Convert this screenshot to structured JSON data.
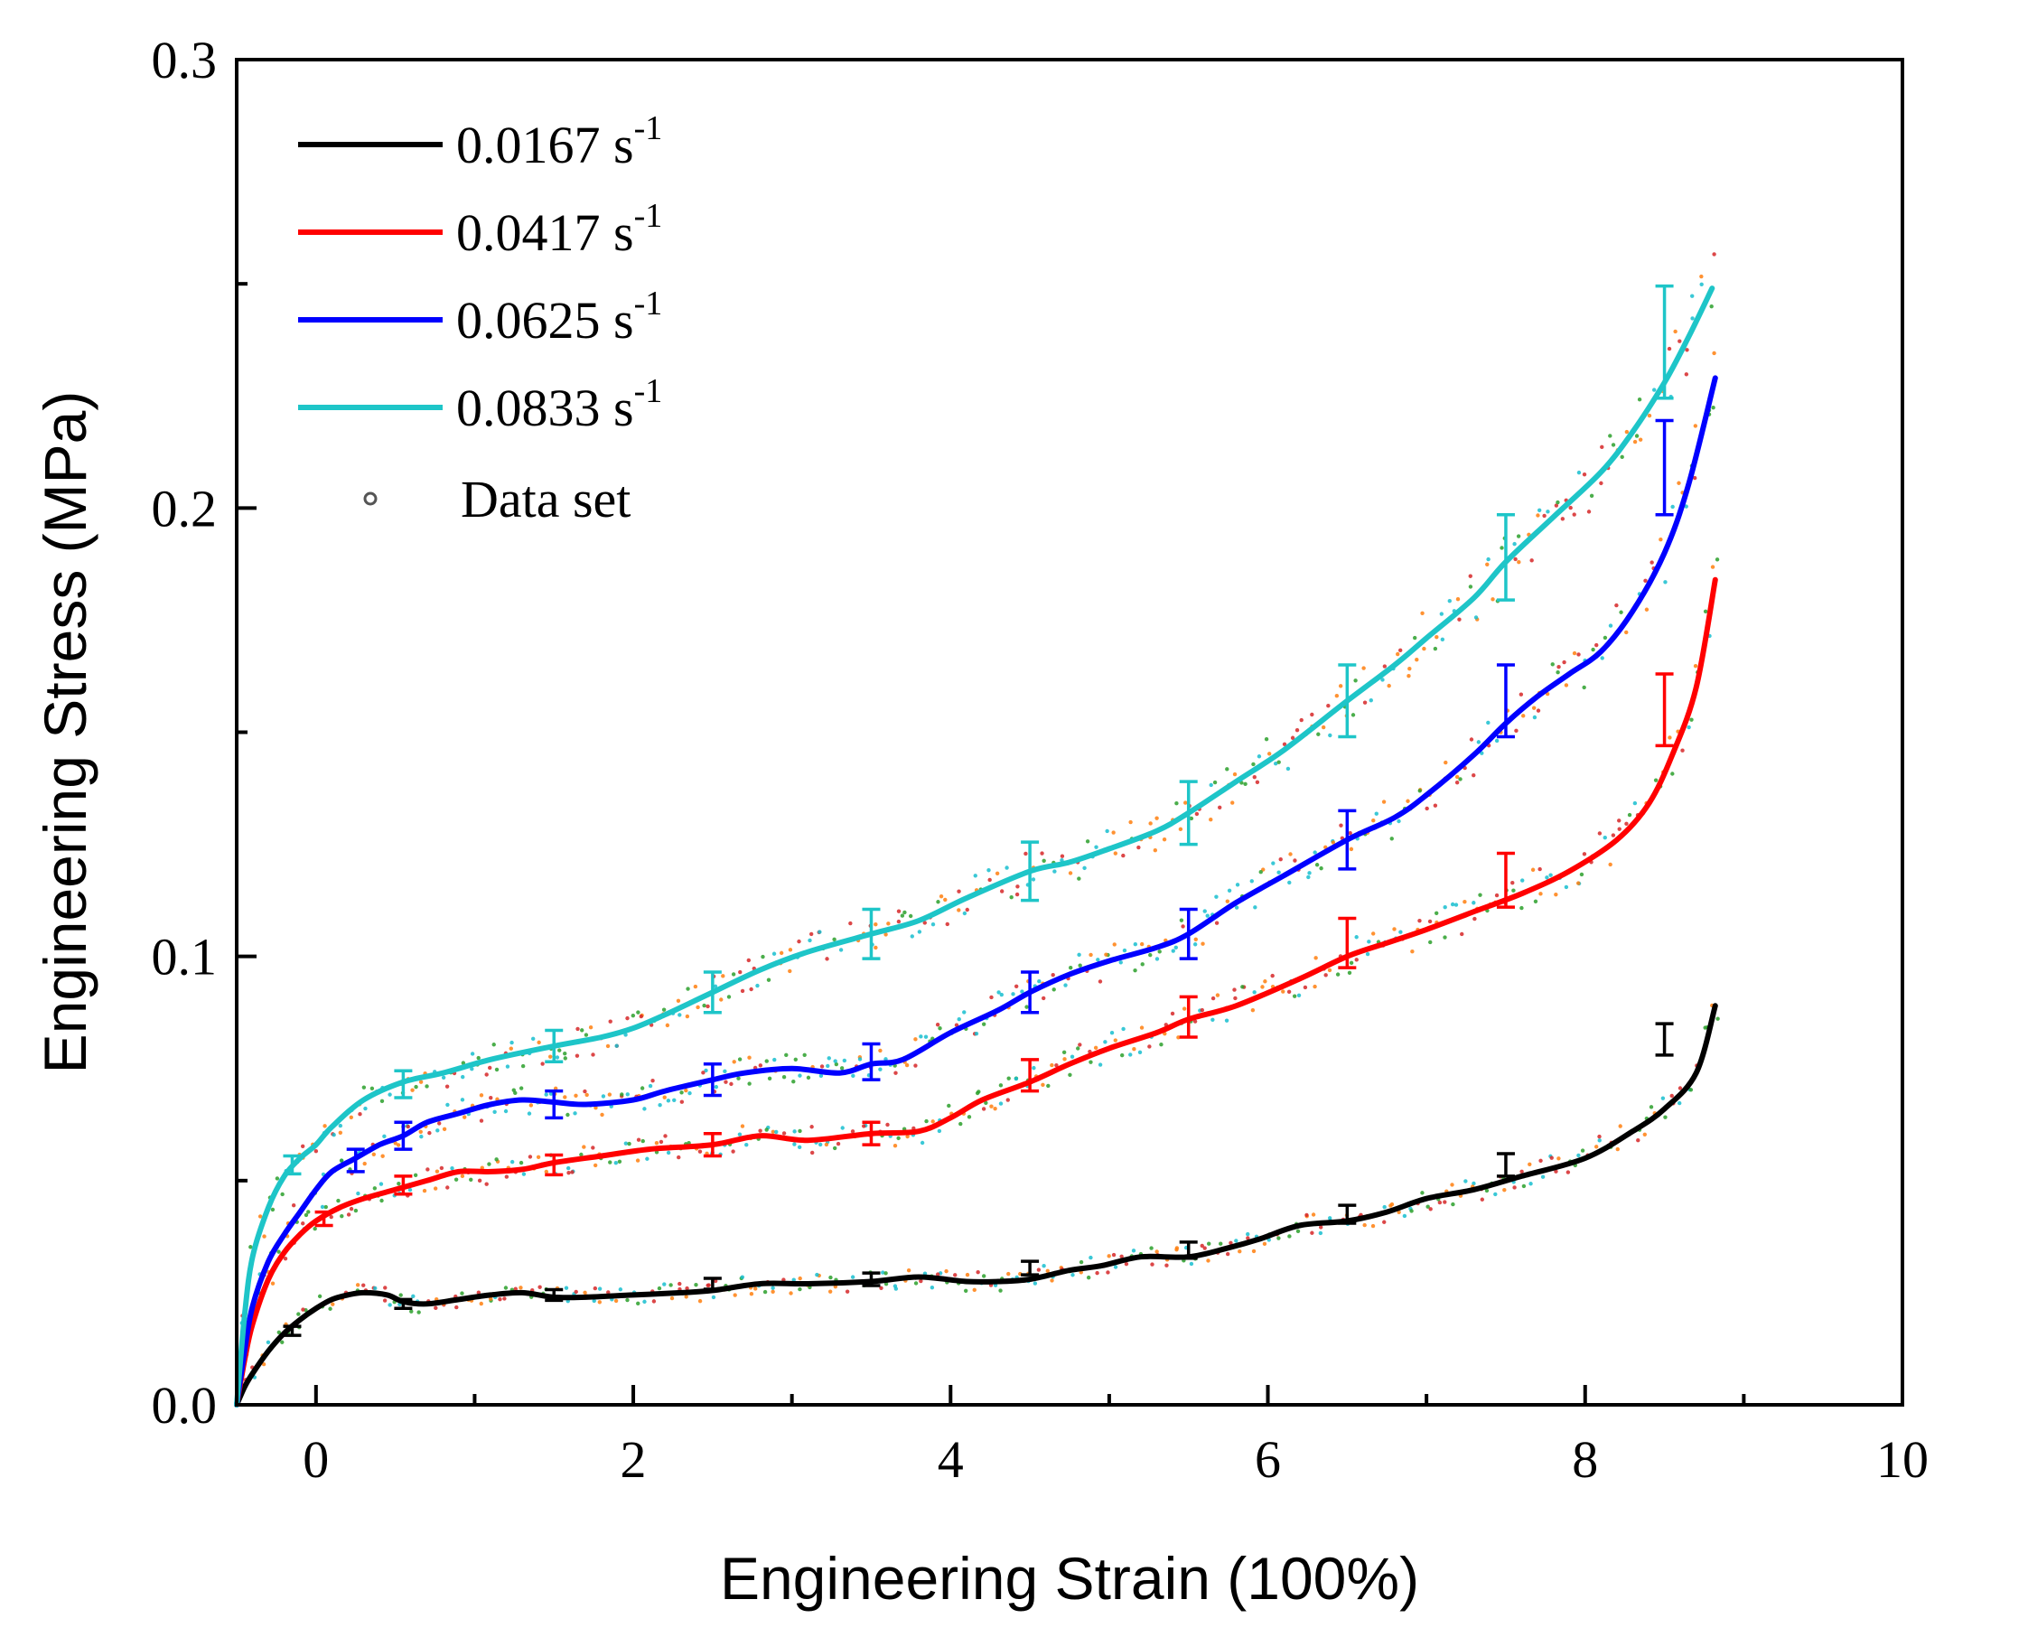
{
  "chart_data": {
    "type": "line",
    "title": "",
    "xlabel": "Engineering Strain (100%)",
    "ylabel": "Engineering Stress (MPa)",
    "xlim": [
      -0.5,
      10.0
    ],
    "ylim": [
      0.0,
      0.3
    ],
    "x_ticks": [
      0,
      2,
      4,
      6,
      8,
      10
    ],
    "x_tick_labels": [
      "0",
      "2",
      "4",
      "6",
      "8",
      "10"
    ],
    "y_ticks": [
      0.0,
      0.1,
      0.2,
      0.3
    ],
    "y_tick_labels": [
      "0.0",
      "0.1",
      "0.2",
      "0.3"
    ],
    "grid": false,
    "legend_position": "top-left",
    "legend_datapoints_label": "Data set",
    "series": [
      {
        "name": "0.0167 s",
        "unit_exp": "-1",
        "color": "#000000",
        "x": [
          -0.5,
          -0.45,
          -0.4,
          -0.3,
          -0.2,
          -0.1,
          0.0,
          0.1,
          0.2,
          0.3,
          0.45,
          0.55,
          0.7,
          0.9,
          1.1,
          1.3,
          1.5,
          1.7,
          2.0,
          2.3,
          2.5,
          2.8,
          3.1,
          3.5,
          3.8,
          4.1,
          4.3,
          4.5,
          4.75,
          4.95,
          5.2,
          5.5,
          5.75,
          5.95,
          6.2,
          6.5,
          6.75,
          7.0,
          7.3,
          7.6,
          8.0,
          8.3,
          8.5,
          8.7,
          8.82
        ],
        "y": [
          0.0,
          0.004,
          0.007,
          0.012,
          0.016,
          0.019,
          0.0215,
          0.0235,
          0.0245,
          0.025,
          0.0245,
          0.023,
          0.0225,
          0.0235,
          0.0245,
          0.025,
          0.024,
          0.024,
          0.0245,
          0.025,
          0.0255,
          0.027,
          0.027,
          0.0275,
          0.0285,
          0.0275,
          0.0275,
          0.028,
          0.03,
          0.031,
          0.033,
          0.033,
          0.035,
          0.037,
          0.04,
          0.041,
          0.043,
          0.046,
          0.048,
          0.051,
          0.055,
          0.061,
          0.066,
          0.074,
          0.089
        ],
        "error_x": [
          -0.15,
          0.55,
          1.5,
          2.5,
          3.5,
          4.5,
          5.5,
          6.5,
          7.5,
          8.5
        ],
        "error_y": [
          0.0165,
          0.0225,
          0.0245,
          0.027,
          0.028,
          0.0305,
          0.0345,
          0.0425,
          0.0535,
          0.0815
        ],
        "error_half": [
          0.001,
          0.001,
          0.0012,
          0.0012,
          0.0014,
          0.0015,
          0.0018,
          0.002,
          0.0025,
          0.0035
        ]
      },
      {
        "name": "0.0417 s",
        "unit_exp": "-1",
        "color": "#ff0000",
        "x": [
          -0.5,
          -0.45,
          -0.4,
          -0.3,
          -0.2,
          -0.1,
          0.0,
          0.15,
          0.3,
          0.5,
          0.7,
          0.9,
          1.1,
          1.3,
          1.5,
          1.8,
          2.1,
          2.5,
          2.8,
          3.1,
          3.5,
          3.8,
          4.0,
          4.2,
          4.5,
          4.75,
          5.0,
          5.3,
          5.5,
          5.8,
          6.2,
          6.5,
          6.75,
          7.0,
          7.3,
          7.6,
          7.9,
          8.2,
          8.4,
          8.55,
          8.7,
          8.82
        ],
        "y": [
          0.0,
          0.01,
          0.018,
          0.028,
          0.034,
          0.038,
          0.041,
          0.044,
          0.046,
          0.048,
          0.05,
          0.052,
          0.052,
          0.0525,
          0.054,
          0.0555,
          0.057,
          0.058,
          0.06,
          0.059,
          0.0605,
          0.061,
          0.064,
          0.068,
          0.072,
          0.076,
          0.0795,
          0.083,
          0.086,
          0.089,
          0.095,
          0.1,
          0.103,
          0.106,
          0.11,
          0.114,
          0.119,
          0.126,
          0.134,
          0.145,
          0.16,
          0.184
        ],
        "error_x": [
          0.05,
          0.55,
          1.5,
          2.5,
          3.5,
          4.5,
          5.5,
          6.5,
          7.5,
          8.5
        ],
        "error_y": [
          0.0415,
          0.049,
          0.0535,
          0.058,
          0.0605,
          0.0735,
          0.0865,
          0.103,
          0.117,
          0.155
        ],
        "error_half": [
          0.0015,
          0.002,
          0.0022,
          0.0025,
          0.0025,
          0.0035,
          0.0045,
          0.0055,
          0.006,
          0.008
        ]
      },
      {
        "name": "0.0625 s",
        "unit_exp": "-1",
        "color": "#0000ff",
        "x": [
          -0.5,
          -0.45,
          -0.4,
          -0.3,
          -0.2,
          -0.1,
          0.0,
          0.1,
          0.25,
          0.4,
          0.55,
          0.7,
          0.9,
          1.1,
          1.3,
          1.5,
          1.7,
          2.0,
          2.2,
          2.5,
          2.7,
          3.0,
          3.3,
          3.5,
          3.7,
          4.0,
          4.3,
          4.5,
          4.75,
          5.0,
          5.3,
          5.5,
          5.8,
          6.1,
          6.5,
          6.8,
          7.0,
          7.3,
          7.5,
          7.7,
          7.9,
          8.1,
          8.3,
          8.5,
          8.65,
          8.82
        ],
        "y": [
          0.0,
          0.012,
          0.022,
          0.032,
          0.038,
          0.043,
          0.048,
          0.052,
          0.055,
          0.058,
          0.06,
          0.063,
          0.065,
          0.067,
          0.068,
          0.0675,
          0.067,
          0.068,
          0.07,
          0.0725,
          0.074,
          0.075,
          0.074,
          0.076,
          0.077,
          0.083,
          0.088,
          0.092,
          0.096,
          0.099,
          0.102,
          0.105,
          0.112,
          0.118,
          0.126,
          0.131,
          0.136,
          0.145,
          0.152,
          0.158,
          0.163,
          0.168,
          0.177,
          0.19,
          0.205,
          0.229
        ],
        "error_x": [
          0.25,
          0.55,
          1.5,
          2.5,
          3.5,
          4.5,
          5.5,
          6.5,
          7.5,
          8.5
        ],
        "error_y": [
          0.0545,
          0.06,
          0.067,
          0.0725,
          0.0765,
          0.092,
          0.105,
          0.126,
          0.157,
          0.209
        ],
        "error_half": [
          0.0025,
          0.003,
          0.003,
          0.0035,
          0.004,
          0.0045,
          0.0055,
          0.0065,
          0.008,
          0.0105
        ]
      },
      {
        "name": "0.0833 s",
        "unit_exp": "-1",
        "color": "#1ec5c8",
        "x": [
          -0.5,
          -0.45,
          -0.4,
          -0.3,
          -0.2,
          -0.1,
          0.0,
          0.1,
          0.3,
          0.55,
          0.8,
          1.1,
          1.5,
          1.8,
          2.0,
          2.2,
          2.5,
          2.8,
          3.1,
          3.5,
          3.8,
          4.1,
          4.5,
          4.75,
          5.0,
          5.3,
          5.5,
          5.8,
          6.1,
          6.5,
          6.8,
          7.0,
          7.3,
          7.5,
          7.8,
          8.1,
          8.3,
          8.5,
          8.65,
          8.8
        ],
        "y": [
          0.0,
          0.02,
          0.033,
          0.044,
          0.051,
          0.055,
          0.058,
          0.062,
          0.068,
          0.072,
          0.074,
          0.077,
          0.08,
          0.082,
          0.084,
          0.087,
          0.092,
          0.097,
          0.101,
          0.105,
          0.108,
          0.113,
          0.119,
          0.121,
          0.124,
          0.128,
          0.132,
          0.139,
          0.146,
          0.157,
          0.165,
          0.171,
          0.18,
          0.188,
          0.198,
          0.208,
          0.217,
          0.228,
          0.238,
          0.249
        ],
        "error_x": [
          -0.15,
          0.55,
          1.5,
          2.5,
          3.5,
          4.5,
          5.5,
          6.5,
          7.5,
          8.5
        ],
        "error_y": [
          0.0535,
          0.0715,
          0.08,
          0.092,
          0.105,
          0.119,
          0.132,
          0.157,
          0.189,
          0.237
        ],
        "error_half": [
          0.002,
          0.003,
          0.0035,
          0.0045,
          0.0055,
          0.0065,
          0.007,
          0.008,
          0.0095,
          0.0125
        ]
      }
    ],
    "scatter_colors": [
      "#ff7f0e",
      "#2ca02c",
      "#d62728",
      "#17becf"
    ]
  }
}
